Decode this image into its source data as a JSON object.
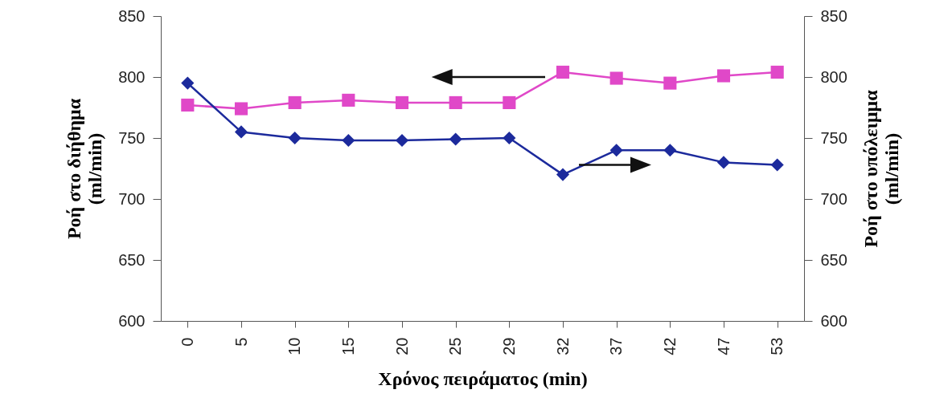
{
  "chart_data": {
    "type": "line",
    "xlabel": "Χρόνος πειράματος (min)",
    "ylabel": "Ροή στο διήθημα (ml/min)",
    "y2label": "Ροή στο υπόλειμμα (ml/min)",
    "categories": [
      "0",
      "5",
      "10",
      "15",
      "20",
      "25",
      "29",
      "32",
      "37",
      "42",
      "47",
      "53"
    ],
    "series": [
      {
        "color": "#e048c8",
        "marker": "square",
        "values": [
          777,
          774,
          779,
          781,
          779,
          779,
          779,
          804,
          799,
          795,
          801,
          804
        ]
      },
      {
        "color": "#1c2a9c",
        "marker": "diamond",
        "axis": "y2",
        "values": [
          795,
          755,
          750,
          748,
          748,
          749,
          750,
          720,
          740,
          740,
          730,
          728
        ]
      }
    ],
    "ylim": [
      600,
      850
    ],
    "yticks": [
      600,
      650,
      700,
      750,
      800,
      850
    ],
    "y2lim": [
      600,
      850
    ],
    "y2ticks": [
      600,
      650,
      700,
      750,
      800,
      850
    ],
    "grid": false
  }
}
